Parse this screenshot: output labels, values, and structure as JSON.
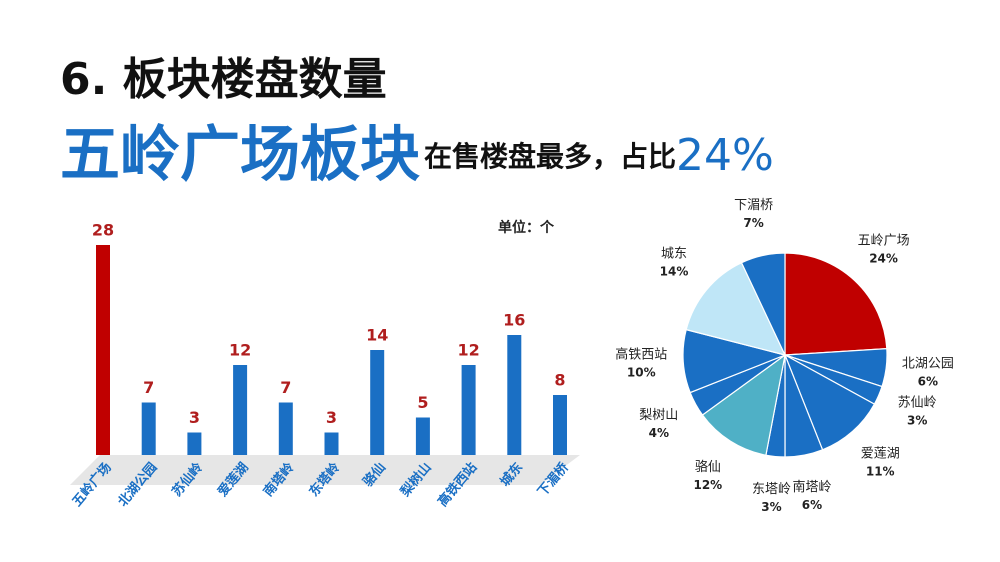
{
  "header": {
    "title": "6. 板块楼盘数量",
    "headline": "五岭广场板块",
    "headline_rest": "在售楼盘最多，占比",
    "headline_share": "24%"
  },
  "chart_data": [
    {
      "type": "bar",
      "unit": "单位：个",
      "categories": [
        "五岭广场",
        "北湖公园",
        "苏仙岭",
        "爱莲湖",
        "南塔岭",
        "东塔岭",
        "骆仙",
        "梨树山",
        "高铁西站",
        "城东",
        "下湄桥"
      ],
      "values": [
        28,
        7,
        3,
        12,
        7,
        3,
        14,
        5,
        12,
        16,
        8
      ],
      "colors": [
        "#c00000",
        "#1a6fc4",
        "#1a6fc4",
        "#1a6fc4",
        "#1a6fc4",
        "#1a6fc4",
        "#1a6fc4",
        "#1a6fc4",
        "#1a6fc4",
        "#1a6fc4",
        "#1a6fc4"
      ],
      "label_color": "#b01e1e"
    },
    {
      "type": "pie",
      "categories": [
        "五岭广场",
        "北湖公园",
        "苏仙岭",
        "爱莲湖",
        "南塔岭",
        "东塔岭",
        "骆仙",
        "梨树山",
        "高铁西站",
        "城东",
        "下湄桥"
      ],
      "values": [
        24,
        6,
        3,
        11,
        6,
        3,
        12,
        4,
        10,
        14,
        7
      ],
      "value_labels": [
        "24%",
        "6%",
        "3%",
        "11%",
        "6%",
        "3%",
        "12%",
        "4%",
        "10%",
        "14%",
        "7%"
      ],
      "colors": [
        "#c00000",
        "#1a6fc4",
        "#1a6fc4",
        "#1a6fc4",
        "#1a6fc4",
        "#1a6fc4",
        "#4fb0c6",
        "#1a6fc4",
        "#1a6fc4",
        "#bfe6f7",
        "#1a6fc4"
      ]
    }
  ]
}
